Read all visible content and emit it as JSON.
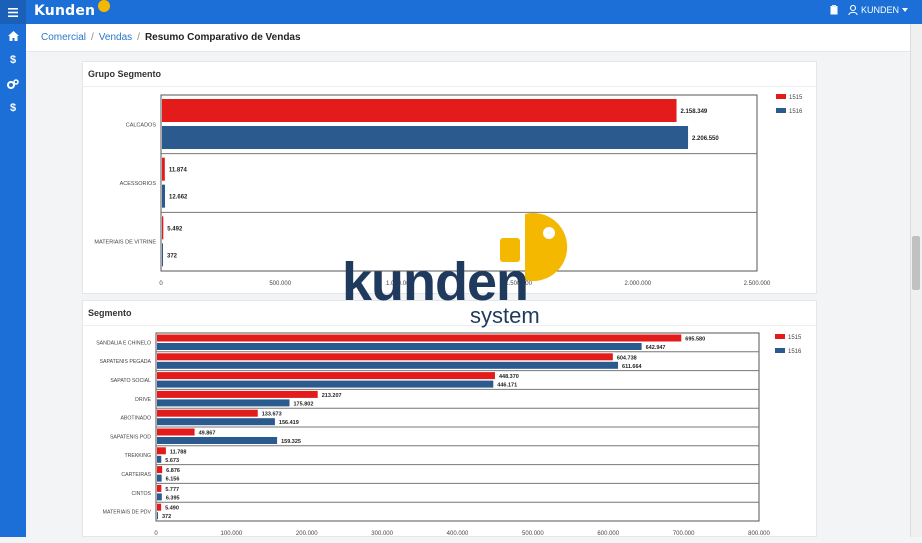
{
  "app": {
    "logo_text": "Kunden",
    "user_label": "KUNDEN"
  },
  "breadcrumb": {
    "items": [
      "Comercial",
      "Vendas"
    ],
    "current": "Resumo Comparativo de Vendas"
  },
  "sidebar": {
    "icons": [
      "home-icon",
      "dollar-icon",
      "cogs-icon",
      "dollar-icon"
    ]
  },
  "colors": {
    "primary": "#1b6fd6",
    "series_1515": "#e31b1b",
    "series_1516": "#2b5a8f",
    "accent": "#f5b800",
    "watermark": "#1f3a5c"
  },
  "watermark": {
    "brand": "kunden",
    "sub": "system"
  },
  "charts": {
    "grupo": {
      "title": "Grupo Segmento"
    },
    "segmento": {
      "title": "Segmento"
    }
  },
  "chart_data": [
    {
      "type": "bar",
      "orientation": "horizontal",
      "title": "Grupo Segmento",
      "categories": [
        "CALCADOS",
        "ACESSORIOS",
        "MATERIAIS DE VITRINE"
      ],
      "series": [
        {
          "name": "1515",
          "values": [
            2158349,
            11874,
            5492
          ],
          "labels": [
            "2.158.349",
            "11.874",
            "5.492"
          ]
        },
        {
          "name": "1516",
          "values": [
            2206550,
            12662,
            372
          ],
          "labels": [
            "2.206.550",
            "12.662",
            "372"
          ]
        }
      ],
      "xlim": [
        0,
        2500000
      ],
      "ticks": [
        0,
        500000,
        1000000,
        1500000,
        2000000,
        2500000
      ],
      "tick_labels": [
        "0",
        "500.000",
        "1.000.000",
        "1.500.000",
        "2.000.000",
        "2.500.000"
      ],
      "legend": "top-right"
    },
    {
      "type": "bar",
      "orientation": "horizontal",
      "title": "Segmento",
      "categories": [
        "SANDALIA E CHINELO",
        "SAPATENIS PEGADA",
        "SAPATO SOCIAL",
        "DRIVE",
        "ABOTINADO",
        "SAPATENIS POD",
        "TREKKING",
        "CARTEIRAS",
        "CINTOS",
        "MATERIAIS DE PDV"
      ],
      "series": [
        {
          "name": "1515",
          "values": [
            695580,
            604738,
            448370,
            213207,
            133673,
            49867,
            11788,
            6876,
            5777,
            5490
          ],
          "labels": [
            "695.580",
            "604.738",
            "448.370",
            "213.207",
            "133.673",
            "49.867",
            "11.788",
            "6.876",
            "5.777",
            "5.490"
          ]
        },
        {
          "name": "1516",
          "values": [
            642947,
            611664,
            446171,
            175802,
            156419,
            159325,
            5673,
            6156,
            6395,
            372
          ],
          "labels": [
            "642.947",
            "611.664",
            "446.171",
            "175.802",
            "156.419",
            "159.325",
            "5.673",
            "6.156",
            "6.395",
            "372"
          ]
        }
      ],
      "xlim": [
        0,
        800000
      ],
      "ticks": [
        0,
        100000,
        200000,
        300000,
        400000,
        500000,
        600000,
        700000,
        800000
      ],
      "tick_labels": [
        "0",
        "100.000",
        "200.000",
        "300.000",
        "400.000",
        "500.000",
        "600.000",
        "700.000",
        "800.000"
      ],
      "legend": "top-right"
    }
  ]
}
